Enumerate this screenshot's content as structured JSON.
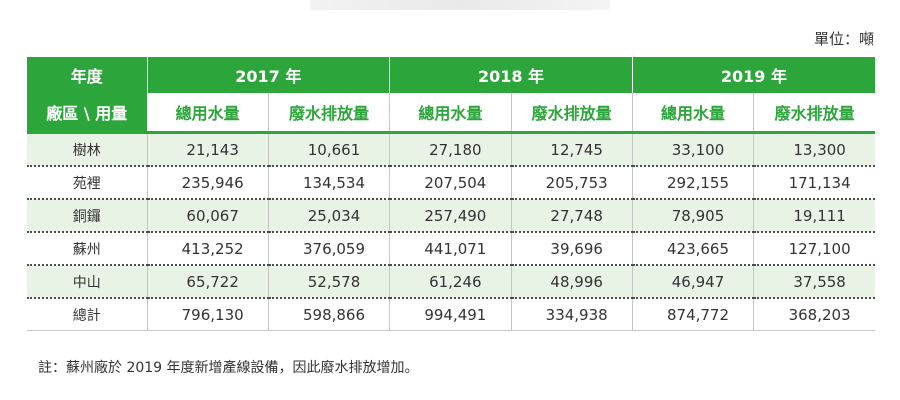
{
  "unit_label": "單位：噸",
  "header": {
    "row1_label": "年度",
    "row2_label": "廠區 \\ 用量",
    "years": [
      "2017 年",
      "2018 年",
      "2019 年"
    ],
    "metrics": [
      "總用水量",
      "廢水排放量"
    ]
  },
  "rows": [
    {
      "label": "樹林",
      "values": [
        "21,143",
        "10,661",
        "27,180",
        "12,745",
        "33,100",
        "13,300"
      ]
    },
    {
      "label": "苑裡",
      "values": [
        "235,946",
        "134,534",
        "207,504",
        "205,753",
        "292,155",
        "171,134"
      ]
    },
    {
      "label": "銅鑼",
      "values": [
        "60,067",
        "25,034",
        "257,490",
        "27,748",
        "78,905",
        "19,111"
      ]
    },
    {
      "label": "蘇州",
      "values": [
        "413,252",
        "376,059",
        "441,071",
        "39,696",
        "423,665",
        "127,100"
      ]
    },
    {
      "label": "中山",
      "values": [
        "65,722",
        "52,578",
        "61,246",
        "48,996",
        "46,947",
        "37,558"
      ]
    },
    {
      "label": "總計",
      "values": [
        "796,130",
        "598,866",
        "994,491",
        "334,938",
        "874,772",
        "368,203"
      ]
    }
  ],
  "note": "註：蘇州廠於 2019 年度新增產線設備，因此廢水排放增加。",
  "colors": {
    "header_green": "#2ca53a",
    "row_shade": "#e8f3e5"
  }
}
